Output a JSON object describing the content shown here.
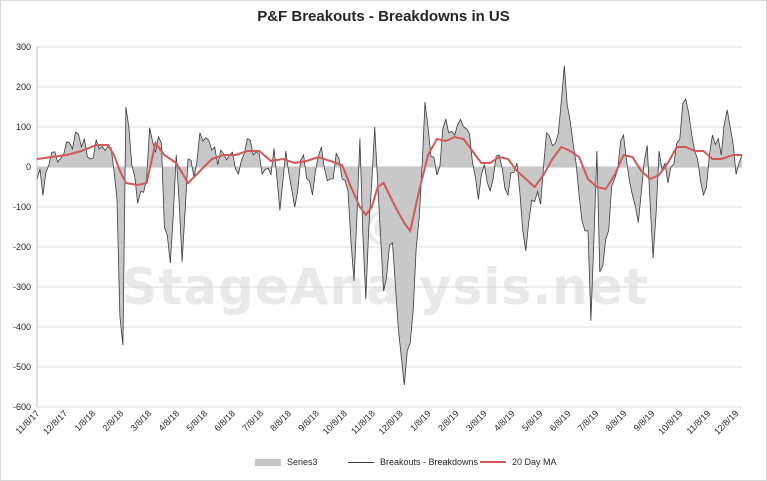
{
  "chart_data": {
    "type": "area",
    "title": "P&F Breakouts - Breakdowns in US",
    "watermark": "© StageAnalysis.net",
    "ylim": [
      -600,
      300
    ],
    "yticks": [
      300,
      200,
      100,
      0,
      -100,
      -200,
      -300,
      -400,
      -500,
      -600
    ],
    "xlabels": [
      "11/8/17",
      "12/8/17",
      "1/8/18",
      "2/8/18",
      "3/8/18",
      "4/8/18",
      "5/8/18",
      "6/8/18",
      "7/8/18",
      "8/8/18",
      "9/8/18",
      "10/8/18",
      "11/8/18",
      "12/8/18",
      "1/8/19",
      "2/8/19",
      "3/8/19",
      "4/8/19",
      "5/8/19",
      "6/8/19",
      "7/8/19",
      "8/8/19",
      "9/8/19",
      "10/8/19",
      "11/8/19",
      "12/8/19"
    ],
    "series": [
      {
        "name": "Series3",
        "kind": "area"
      },
      {
        "name": "Breakouts - Breakdowns",
        "kind": "line"
      },
      {
        "name": "20 Day MA",
        "kind": "ma"
      }
    ],
    "anchors": [
      [
        0,
        -30
      ],
      [
        2,
        -40
      ],
      [
        5,
        40
      ],
      [
        10,
        30
      ],
      [
        14,
        60
      ],
      [
        18,
        20
      ],
      [
        20,
        50
      ],
      [
        22,
        40
      ],
      [
        25,
        60
      ],
      [
        27,
        -80
      ],
      [
        28,
        -350
      ],
      [
        29,
        -440
      ],
      [
        30,
        150
      ],
      [
        32,
        20
      ],
      [
        34,
        -70
      ],
      [
        37,
        -60
      ],
      [
        38,
        100
      ],
      [
        40,
        30
      ],
      [
        42,
        60
      ],
      [
        43,
        -130
      ],
      [
        45,
        -240
      ],
      [
        47,
        30
      ],
      [
        49,
        -210
      ],
      [
        51,
        20
      ],
      [
        53,
        -30
      ],
      [
        55,
        60
      ],
      [
        58,
        80
      ],
      [
        62,
        20
      ],
      [
        65,
        60
      ],
      [
        68,
        -10
      ],
      [
        71,
        70
      ],
      [
        74,
        60
      ],
      [
        77,
        -20
      ],
      [
        80,
        30
      ],
      [
        82,
        -80
      ],
      [
        84,
        40
      ],
      [
        87,
        -100
      ],
      [
        90,
        30
      ],
      [
        93,
        -70
      ],
      [
        96,
        50
      ],
      [
        99,
        -30
      ],
      [
        102,
        20
      ],
      [
        105,
        -60
      ],
      [
        107,
        -290
      ],
      [
        109,
        40
      ],
      [
        111,
        -330
      ],
      [
        112,
        -120
      ],
      [
        114,
        100
      ],
      [
        117,
        -310
      ],
      [
        120,
        -190
      ],
      [
        122,
        -440
      ],
      [
        124,
        -510
      ],
      [
        126,
        -440
      ],
      [
        129,
        -130
      ],
      [
        131,
        140
      ],
      [
        133,
        60
      ],
      [
        135,
        -20
      ],
      [
        138,
        120
      ],
      [
        141,
        80
      ],
      [
        144,
        100
      ],
      [
        146,
        60
      ],
      [
        149,
        -80
      ],
      [
        151,
        40
      ],
      [
        153,
        -60
      ],
      [
        156,
        30
      ],
      [
        159,
        -70
      ],
      [
        162,
        10
      ],
      [
        165,
        -210
      ],
      [
        167,
        -100
      ],
      [
        170,
        -60
      ],
      [
        172,
        60
      ],
      [
        175,
        50
      ],
      [
        178,
        220
      ],
      [
        181,
        60
      ],
      [
        183,
        -70
      ],
      [
        186,
        -160
      ],
      [
        187,
        -400
      ],
      [
        189,
        40
      ],
      [
        190,
        -270
      ],
      [
        192,
        -180
      ],
      [
        195,
        -30
      ],
      [
        198,
        80
      ],
      [
        200,
        -40
      ],
      [
        203,
        -130
      ],
      [
        206,
        70
      ],
      [
        208,
        -260
      ],
      [
        210,
        40
      ],
      [
        213,
        -40
      ],
      [
        216,
        60
      ],
      [
        219,
        170
      ],
      [
        222,
        40
      ],
      [
        225,
        -70
      ],
      [
        228,
        80
      ],
      [
        231,
        30
      ],
      [
        233,
        150
      ],
      [
        236,
        0
      ],
      [
        238,
        20
      ]
    ],
    "ma": [
      [
        0,
        20
      ],
      [
        5,
        25
      ],
      [
        10,
        30
      ],
      [
        15,
        40
      ],
      [
        20,
        55
      ],
      [
        24,
        55
      ],
      [
        26,
        30
      ],
      [
        28,
        -10
      ],
      [
        30,
        -40
      ],
      [
        34,
        -45
      ],
      [
        37,
        -40
      ],
      [
        40,
        60
      ],
      [
        43,
        30
      ],
      [
        47,
        10
      ],
      [
        51,
        -40
      ],
      [
        55,
        -10
      ],
      [
        59,
        20
      ],
      [
        63,
        30
      ],
      [
        67,
        30
      ],
      [
        71,
        40
      ],
      [
        75,
        40
      ],
      [
        79,
        15
      ],
      [
        83,
        20
      ],
      [
        87,
        10
      ],
      [
        91,
        15
      ],
      [
        95,
        25
      ],
      [
        99,
        15
      ],
      [
        103,
        5
      ],
      [
        106,
        -50
      ],
      [
        109,
        -100
      ],
      [
        111,
        -120
      ],
      [
        113,
        -100
      ],
      [
        115,
        -50
      ],
      [
        117,
        -40
      ],
      [
        119,
        -70
      ],
      [
        121,
        -100
      ],
      [
        124,
        -140
      ],
      [
        126,
        -160
      ],
      [
        129,
        -60
      ],
      [
        132,
        30
      ],
      [
        135,
        70
      ],
      [
        138,
        65
      ],
      [
        141,
        75
      ],
      [
        144,
        70
      ],
      [
        147,
        40
      ],
      [
        150,
        10
      ],
      [
        153,
        10
      ],
      [
        156,
        25
      ],
      [
        159,
        20
      ],
      [
        162,
        -10
      ],
      [
        165,
        -30
      ],
      [
        168,
        -50
      ],
      [
        171,
        -20
      ],
      [
        174,
        20
      ],
      [
        177,
        50
      ],
      [
        180,
        40
      ],
      [
        183,
        25
      ],
      [
        186,
        -30
      ],
      [
        189,
        -50
      ],
      [
        192,
        -55
      ],
      [
        195,
        -20
      ],
      [
        198,
        30
      ],
      [
        201,
        25
      ],
      [
        204,
        -10
      ],
      [
        207,
        -30
      ],
      [
        210,
        -20
      ],
      [
        213,
        10
      ],
      [
        216,
        50
      ],
      [
        219,
        50
      ],
      [
        222,
        40
      ],
      [
        225,
        40
      ],
      [
        228,
        20
      ],
      [
        231,
        20
      ],
      [
        235,
        30
      ],
      [
        238,
        30
      ]
    ]
  }
}
